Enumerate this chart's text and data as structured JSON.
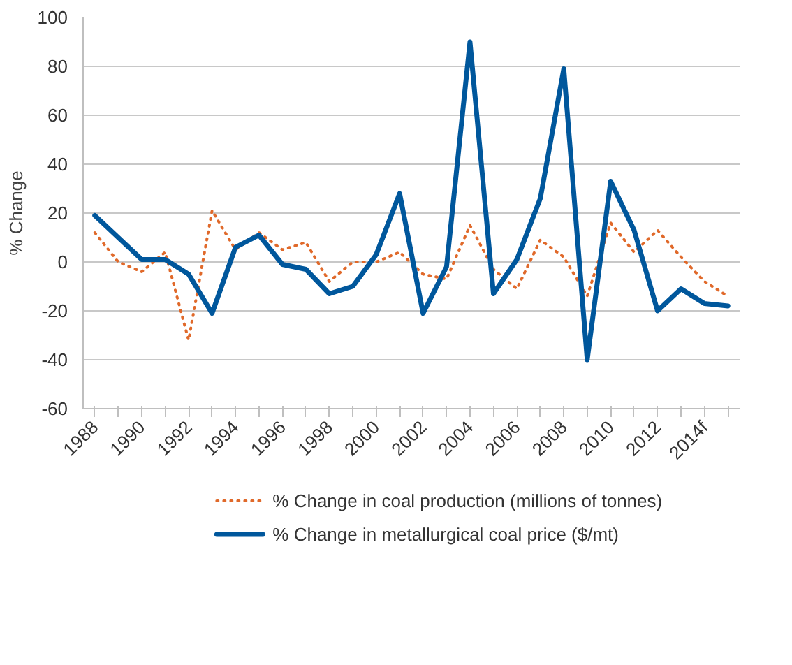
{
  "chart_data": {
    "type": "line",
    "ylabel": "% Change",
    "categories": [
      "1988",
      null,
      "1990",
      null,
      "1992",
      null,
      "1994",
      null,
      "1996",
      null,
      "1998",
      null,
      "2000",
      null,
      "2002",
      null,
      "2004",
      null,
      "2006",
      null,
      "2008",
      null,
      "2010",
      null,
      "2012",
      null,
      "2014f",
      null
    ],
    "series": [
      {
        "name": "% Change in coal production (millions of tonnes)",
        "color": "#e0692a",
        "line_style": "dotted",
        "values": [
          12,
          0,
          -4,
          4,
          -32,
          21,
          5,
          12,
          5,
          8,
          -8,
          0,
          0,
          4,
          -5,
          -7,
          15,
          -3,
          -11,
          9,
          2,
          -14,
          16,
          4,
          13,
          2,
          -8,
          -14
        ]
      },
      {
        "name": "% Change in metallurgical coal price ($/mt)",
        "color": "#00579c",
        "line_style": "solid",
        "values": [
          19,
          10,
          1,
          1,
          -5,
          -21,
          6,
          11,
          -1,
          -3,
          -13,
          -10,
          3,
          28,
          -21,
          -2,
          90,
          -13,
          1,
          26,
          79,
          -40,
          33,
          13,
          -20,
          -11,
          -17,
          -18
        ]
      }
    ],
    "ylim": [
      -60,
      100
    ],
    "yticks": [
      -60,
      -40,
      -20,
      0,
      20,
      40,
      60,
      80,
      100
    ],
    "grid": "y",
    "legend": "bottom",
    "marker": "none"
  }
}
